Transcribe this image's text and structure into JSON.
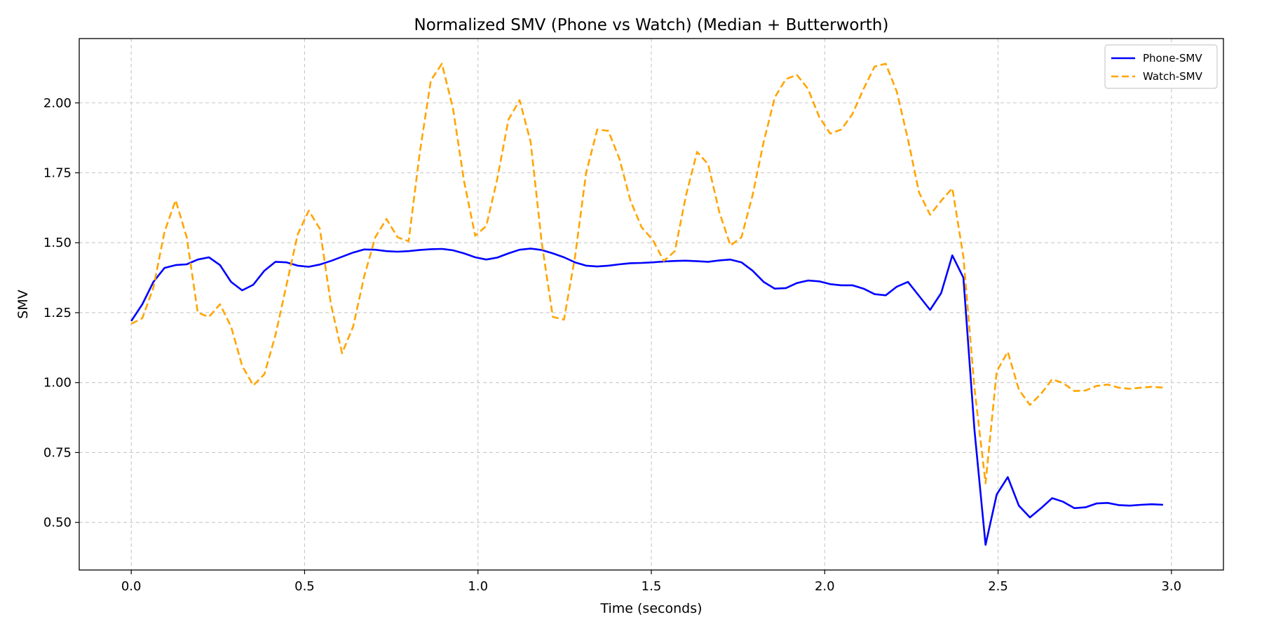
{
  "chart_data": {
    "type": "line",
    "title": "Normalized SMV (Phone vs Watch) (Median + Butterworth)",
    "xlabel": "Time (seconds)",
    "ylabel": "SMV",
    "xlim": [
      -0.15,
      3.15
    ],
    "ylim": [
      0.33,
      2.23
    ],
    "xticks": [
      0.0,
      0.5,
      1.0,
      1.5,
      2.0,
      2.5,
      3.0
    ],
    "xtick_labels": [
      "0.0",
      "0.5",
      "1.0",
      "1.5",
      "2.0",
      "2.5",
      "3.0"
    ],
    "yticks": [
      0.5,
      0.75,
      1.0,
      1.25,
      1.5,
      1.75,
      2.0
    ],
    "ytick_labels": [
      "0.50",
      "0.75",
      "1.00",
      "1.25",
      "1.50",
      "1.75",
      "2.00"
    ],
    "grid": true,
    "legend_position": "top-right",
    "series": [
      {
        "name": "Phone-SMV",
        "color": "#0000ff",
        "style": "solid",
        "x": [
          0.0,
          0.032,
          0.064,
          0.096,
          0.128,
          0.16,
          0.192,
          0.224,
          0.256,
          0.288,
          0.32,
          0.352,
          0.384,
          0.416,
          0.448,
          0.48,
          0.512,
          0.544,
          0.576,
          0.608,
          0.64,
          0.672,
          0.704,
          0.736,
          0.768,
          0.8,
          0.832,
          0.864,
          0.896,
          0.928,
          0.96,
          0.992,
          1.024,
          1.056,
          1.088,
          1.12,
          1.152,
          1.184,
          1.216,
          1.248,
          1.28,
          1.312,
          1.344,
          1.376,
          1.408,
          1.44,
          1.472,
          1.504,
          1.536,
          1.568,
          1.6,
          1.632,
          1.664,
          1.696,
          1.728,
          1.76,
          1.792,
          1.824,
          1.856,
          1.888,
          1.92,
          1.952,
          1.984,
          2.016,
          2.048,
          2.08,
          2.112,
          2.144,
          2.176,
          2.208,
          2.24,
          2.272,
          2.304,
          2.336,
          2.368,
          2.4,
          2.432,
          2.464,
          2.496,
          2.528,
          2.56,
          2.592,
          2.624,
          2.656,
          2.688,
          2.72,
          2.752,
          2.784,
          2.816,
          2.848,
          2.88,
          2.912,
          2.944,
          2.976
        ],
        "y": [
          1.22,
          1.28,
          1.36,
          1.41,
          1.42,
          1.423,
          1.44,
          1.448,
          1.42,
          1.36,
          1.33,
          1.35,
          1.4,
          1.432,
          1.43,
          1.418,
          1.414,
          1.422,
          1.435,
          1.45,
          1.465,
          1.476,
          1.475,
          1.47,
          1.468,
          1.47,
          1.474,
          1.477,
          1.478,
          1.473,
          1.462,
          1.448,
          1.44,
          1.447,
          1.462,
          1.475,
          1.479,
          1.474,
          1.462,
          1.448,
          1.43,
          1.418,
          1.415,
          1.418,
          1.423,
          1.427,
          1.428,
          1.43,
          1.433,
          1.435,
          1.436,
          1.434,
          1.432,
          1.437,
          1.44,
          1.43,
          1.4,
          1.36,
          1.336,
          1.338,
          1.356,
          1.365,
          1.362,
          1.352,
          1.348,
          1.348,
          1.336,
          1.316,
          1.312,
          1.343,
          1.36,
          1.31,
          1.26,
          1.32,
          1.455,
          1.375,
          0.83,
          0.42,
          0.6,
          0.662,
          0.56,
          0.518,
          0.551,
          0.587,
          0.574,
          0.551,
          0.554,
          0.568,
          0.57,
          0.562,
          0.56,
          0.563,
          0.565,
          0.563
        ]
      },
      {
        "name": "Watch-SMV",
        "color": "#ffa500",
        "style": "dashed",
        "x": [
          0.0,
          0.032,
          0.064,
          0.096,
          0.128,
          0.16,
          0.192,
          0.224,
          0.256,
          0.288,
          0.32,
          0.352,
          0.384,
          0.416,
          0.448,
          0.48,
          0.512,
          0.544,
          0.576,
          0.608,
          0.64,
          0.672,
          0.704,
          0.736,
          0.768,
          0.8,
          0.832,
          0.864,
          0.896,
          0.928,
          0.96,
          0.992,
          1.024,
          1.056,
          1.088,
          1.12,
          1.152,
          1.184,
          1.216,
          1.248,
          1.28,
          1.312,
          1.344,
          1.376,
          1.408,
          1.44,
          1.472,
          1.504,
          1.536,
          1.568,
          1.6,
          1.632,
          1.664,
          1.696,
          1.728,
          1.76,
          1.792,
          1.824,
          1.856,
          1.888,
          1.92,
          1.952,
          1.984,
          2.016,
          2.048,
          2.08,
          2.112,
          2.144,
          2.176,
          2.208,
          2.24,
          2.272,
          2.304,
          2.336,
          2.368,
          2.4,
          2.432,
          2.464,
          2.496,
          2.528,
          2.56,
          2.592,
          2.624,
          2.656,
          2.688,
          2.72,
          2.752,
          2.784,
          2.816,
          2.848,
          2.88,
          2.912,
          2.944,
          2.976
        ],
        "y": [
          1.21,
          1.23,
          1.34,
          1.54,
          1.652,
          1.52,
          1.25,
          1.235,
          1.28,
          1.2,
          1.06,
          0.99,
          1.03,
          1.17,
          1.35,
          1.53,
          1.615,
          1.55,
          1.28,
          1.105,
          1.2,
          1.38,
          1.52,
          1.585,
          1.52,
          1.505,
          1.82,
          2.08,
          2.14,
          1.98,
          1.72,
          1.525,
          1.56,
          1.73,
          1.94,
          2.01,
          1.86,
          1.5,
          1.235,
          1.225,
          1.45,
          1.75,
          1.905,
          1.9,
          1.8,
          1.65,
          1.555,
          1.51,
          1.435,
          1.47,
          1.67,
          1.825,
          1.78,
          1.61,
          1.49,
          1.52,
          1.67,
          1.86,
          2.02,
          2.085,
          2.1,
          2.05,
          1.95,
          1.89,
          1.905,
          1.96,
          2.05,
          2.13,
          2.14,
          2.04,
          1.87,
          1.68,
          1.6,
          1.65,
          1.695,
          1.45,
          0.98,
          0.64,
          1.04,
          1.11,
          0.975,
          0.92,
          0.96,
          1.012,
          0.998,
          0.97,
          0.972,
          0.988,
          0.993,
          0.982,
          0.978,
          0.982,
          0.985,
          0.982
        ]
      }
    ]
  }
}
